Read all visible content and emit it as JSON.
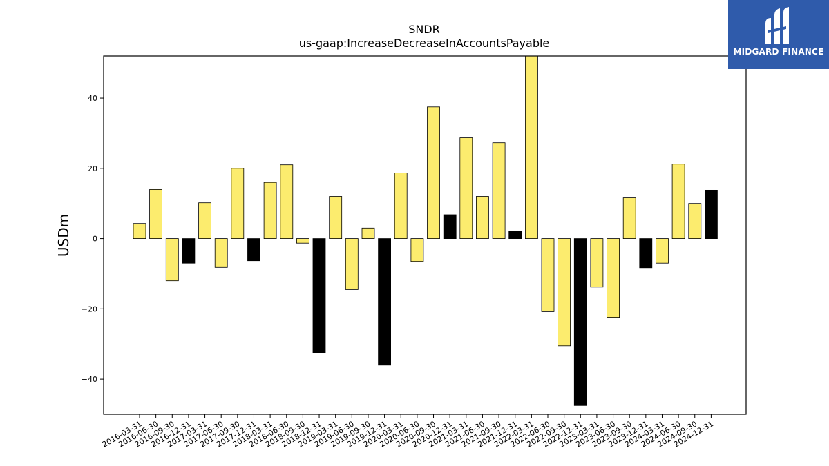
{
  "chart_data": {
    "type": "bar",
    "title": "SNDR",
    "subtitle": "us-gaap:IncreaseDecreaseInAccountsPayable",
    "ylabel": "USDm",
    "xlabel": "",
    "ylim": [
      -50,
      52
    ],
    "yticks": [
      -40,
      -20,
      0,
      20,
      40
    ],
    "ytick_labels": [
      "−40",
      "−20",
      "0",
      "20",
      "40"
    ],
    "categories": [
      "2016-03-31",
      "2016-06-30",
      "2016-09-30",
      "2016-12-31",
      "2017-03-31",
      "2017-06-30",
      "2017-09-30",
      "2017-12-31",
      "2018-03-31",
      "2018-06-30",
      "2018-09-30",
      "2018-12-31",
      "2019-03-31",
      "2019-06-30",
      "2019-09-30",
      "2019-12-31",
      "2020-03-31",
      "2020-06-30",
      "2020-09-30",
      "2020-12-31",
      "2021-03-31",
      "2021-06-30",
      "2021-09-30",
      "2021-12-31",
      "2022-03-31",
      "2022-06-30",
      "2022-09-30",
      "2022-12-31",
      "2023-03-31",
      "2023-06-30",
      "2023-09-30",
      "2023-12-31",
      "2024-03-31",
      "2024-06-30",
      "2024-09-30",
      "2024-12-31"
    ],
    "values": [
      4.3,
      14.0,
      -12.0,
      -7.0,
      10.2,
      -8.2,
      20.0,
      -6.3,
      16.0,
      21.0,
      -1.3,
      -32.5,
      12.0,
      -14.5,
      3.0,
      -36.0,
      18.7,
      -6.5,
      37.5,
      6.8,
      28.7,
      12.0,
      27.3,
      2.2,
      52.0,
      -20.8,
      -30.5,
      -47.5,
      -13.8,
      -22.4,
      11.6,
      -8.3,
      -7.0,
      21.2,
      10.0,
      13.8
    ],
    "bar_colors": [
      "#fcec6e",
      "#fcec6e",
      "#fcec6e",
      "#000000",
      "#fcec6e",
      "#fcec6e",
      "#fcec6e",
      "#000000",
      "#fcec6e",
      "#fcec6e",
      "#fcec6e",
      "#000000",
      "#fcec6e",
      "#fcec6e",
      "#fcec6e",
      "#000000",
      "#fcec6e",
      "#fcec6e",
      "#fcec6e",
      "#000000",
      "#fcec6e",
      "#fcec6e",
      "#fcec6e",
      "#000000",
      "#fcec6e",
      "#fcec6e",
      "#fcec6e",
      "#000000",
      "#fcec6e",
      "#fcec6e",
      "#fcec6e",
      "#000000",
      "#fcec6e",
      "#fcec6e",
      "#fcec6e",
      "#000000"
    ],
    "grid": false,
    "legend": "none"
  },
  "logo": {
    "text": "MIDGARD FINANCE",
    "background": "#2f5bab",
    "icon": "midgard-logo-mark"
  }
}
